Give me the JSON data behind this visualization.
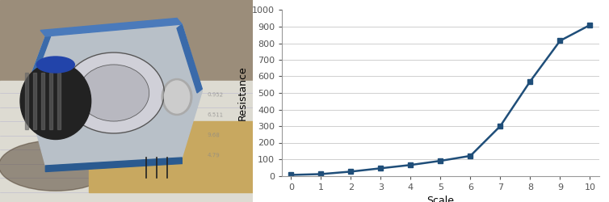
{
  "x": [
    0,
    1,
    2,
    3,
    4,
    5,
    6,
    7,
    8,
    9,
    10
  ],
  "y": [
    5,
    10,
    25,
    45,
    65,
    90,
    120,
    300,
    570,
    815,
    910
  ],
  "xlabel": "Scale",
  "ylabel": "Resistance",
  "xlim": [
    -0.3,
    10.3
  ],
  "ylim": [
    0,
    1000
  ],
  "yticks": [
    0,
    100,
    200,
    300,
    400,
    500,
    600,
    700,
    800,
    900,
    1000
  ],
  "xticks": [
    0,
    1,
    2,
    3,
    4,
    5,
    6,
    7,
    8,
    9,
    10
  ],
  "line_color": "#1F4E79",
  "marker": "s",
  "marker_color": "#1F4E79",
  "marker_size": 5,
  "line_width": 1.8,
  "background_color": "#FFFFFF",
  "grid_color": "#C8C8C8",
  "photo_split": 0.415,
  "bg_top_color": "#8B7D6B",
  "bg_bottom_color": "#C8C0B0",
  "paper_color": "#E8E4DC",
  "board_color": "#B0A898",
  "pcb_color": "#DEBA7A",
  "blue_edge": "#3060A0",
  "knob_dark": "#1A1A1A",
  "knob_mid": "#303030",
  "knob_light": "#888888"
}
